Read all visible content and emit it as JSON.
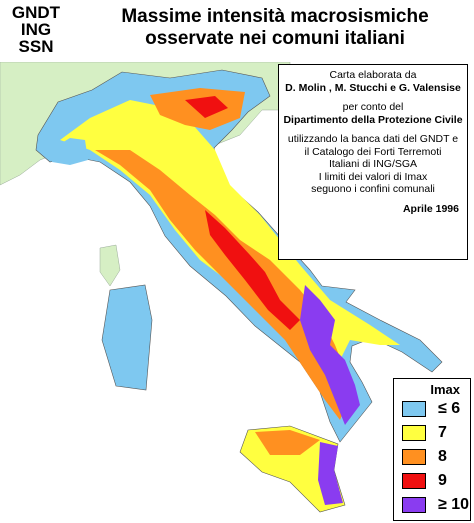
{
  "header": {
    "logo": [
      "GNDT",
      "ING",
      "SSN"
    ],
    "title": [
      "Massime intensità macrosismiche",
      "osservate nei comuni italiani"
    ]
  },
  "info": {
    "credits_intro": "Carta elaborata da",
    "authors": "D. Molin , M. Stucchi e G. Valensise",
    "for_intro": "per conto del",
    "department": "Dipartimento della Protezione Civile",
    "sources": [
      "utilizzando la banca dati del GNDT e",
      "il Catalogo dei Forti Terremoti",
      "Italiani di ING/SGA"
    ],
    "limits": [
      "I limiti dei valori di Imax",
      "seguono i confini comunali"
    ],
    "date": "Aprile 1996"
  },
  "legend": {
    "title": "Imax",
    "items": [
      {
        "label": "≤ 6",
        "color": "#7ec8f0"
      },
      {
        "label": "7",
        "color": "#ffff40"
      },
      {
        "label": "8",
        "color": "#ff9020"
      },
      {
        "label": "9",
        "color": "#f01010"
      },
      {
        "label": "≥ 10",
        "color": "#8a3cf0"
      }
    ]
  }
}
